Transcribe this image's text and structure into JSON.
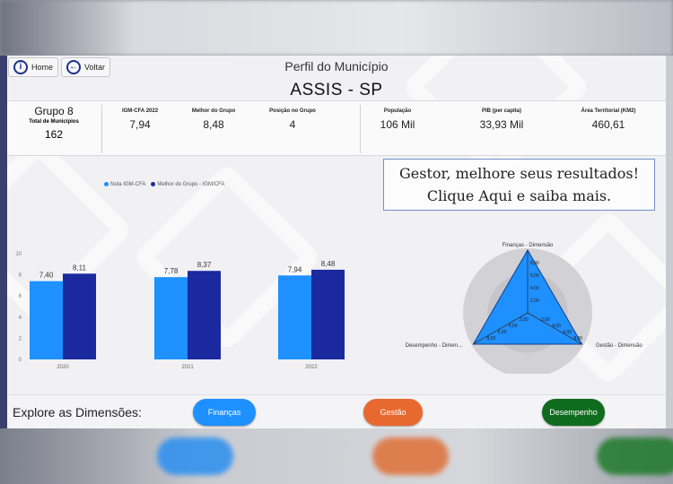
{
  "nav": {
    "home_label": "Home",
    "back_label": "Voltar"
  },
  "header": {
    "subtitle": "Perfil do Município",
    "title": "ASSIS - SP"
  },
  "group": {
    "title": "Grupo 8",
    "count_label": "Total de Municípios",
    "count_value": "162"
  },
  "stats": [
    {
      "label": "IGM-CFA 2022",
      "value": "7,94"
    },
    {
      "label": "Melhor do Grupo",
      "value": "8,48"
    },
    {
      "label": "Posição no Grupo",
      "value": "4"
    },
    {
      "label": "População",
      "value": "106 Mil"
    },
    {
      "label": "PIB (per capita)",
      "value": "33,93 Mil"
    },
    {
      "label": "Área Territorial (KM2)",
      "value": "460,61"
    }
  ],
  "cta": {
    "line1": "Gestor, melhore seus resultados!",
    "line2": "Clique Aqui e saiba mais."
  },
  "explore": {
    "label": "Explore as Dimensões:",
    "buttons": [
      {
        "label": "Finanças",
        "color": "#1e90ff"
      },
      {
        "label": "Gestão",
        "color": "#e8692f"
      },
      {
        "label": "Desempenho",
        "color": "#0f6b1e"
      }
    ]
  },
  "chart_data": [
    {
      "type": "bar",
      "categories": [
        "2020",
        "2021",
        "2022"
      ],
      "series": [
        {
          "name": "Nota IGM-CFA",
          "values": [
            7.4,
            7.78,
            7.94
          ],
          "labels": [
            "7,40",
            "7,78",
            "7,94"
          ],
          "color": "#1e90ff"
        },
        {
          "name": "Melhor do Grupo - IGM/CFA",
          "values": [
            8.11,
            8.37,
            8.48
          ],
          "labels": [
            "8,11",
            "8,37",
            "8,48"
          ],
          "color": "#1a2a9e"
        }
      ],
      "yticks": [
        "0",
        "2",
        "4",
        "6",
        "8",
        "10"
      ],
      "ylim": [
        0,
        10
      ],
      "legend": "top"
    },
    {
      "type": "radar",
      "axes": [
        "Finanças - Dimensão",
        "Gestão - Dimensão",
        "Desempenho - Dimensão"
      ],
      "axes_display": [
        "Finanças - Dimensão",
        "Gestão - Dimensão",
        "Desempenho - Dimen..."
      ],
      "values": [
        10,
        10,
        10
      ],
      "ticks": [
        "2,00",
        "4,00",
        "6,00",
        "8,00"
      ],
      "rmax": 10,
      "fill": "#1e90ff"
    }
  ]
}
